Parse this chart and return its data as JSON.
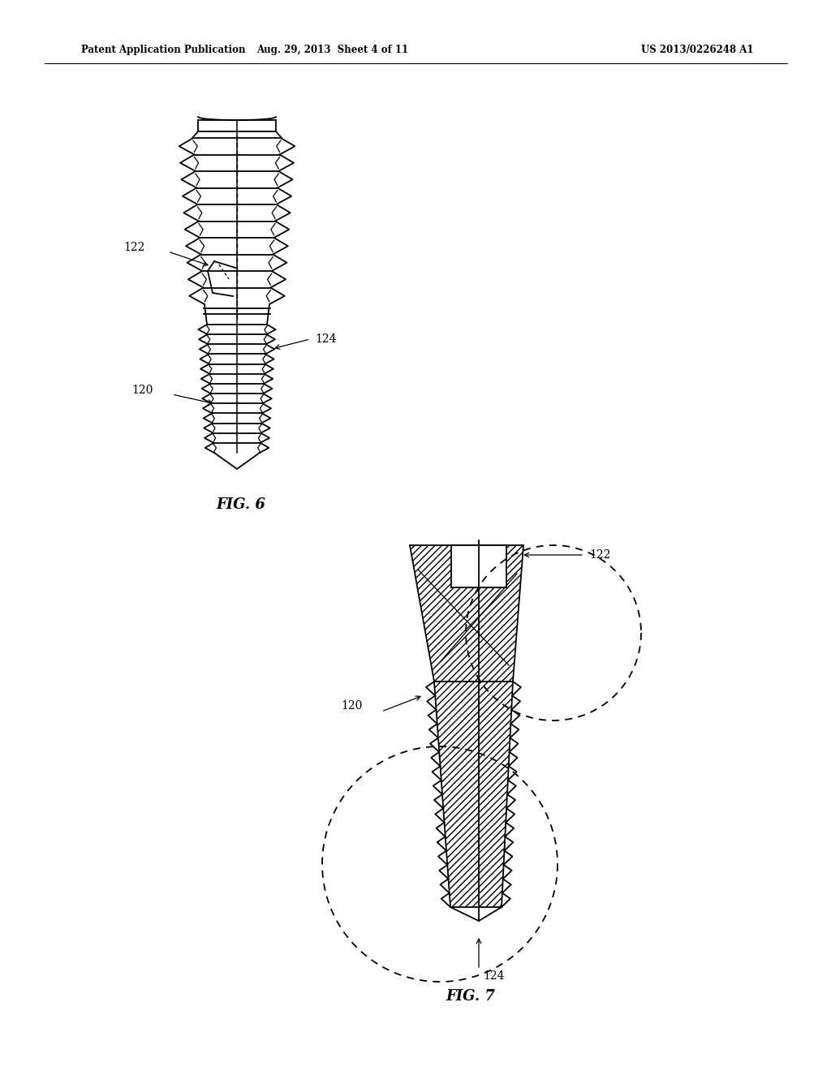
{
  "header_left": "Patent Application Publication",
  "header_mid": "Aug. 29, 2013  Sheet 4 of 11",
  "header_right": "US 2013/0226248 A1",
  "fig6_label": "FIG. 6",
  "fig7_label": "FIG. 7",
  "label_120_fig6": "120",
  "label_122_fig6": "122",
  "label_124_fig6": "124",
  "label_120_fig7": "120",
  "label_122_fig7": "122",
  "label_124_fig7": "124",
  "bg_color": "#ffffff",
  "line_color": "#000000"
}
